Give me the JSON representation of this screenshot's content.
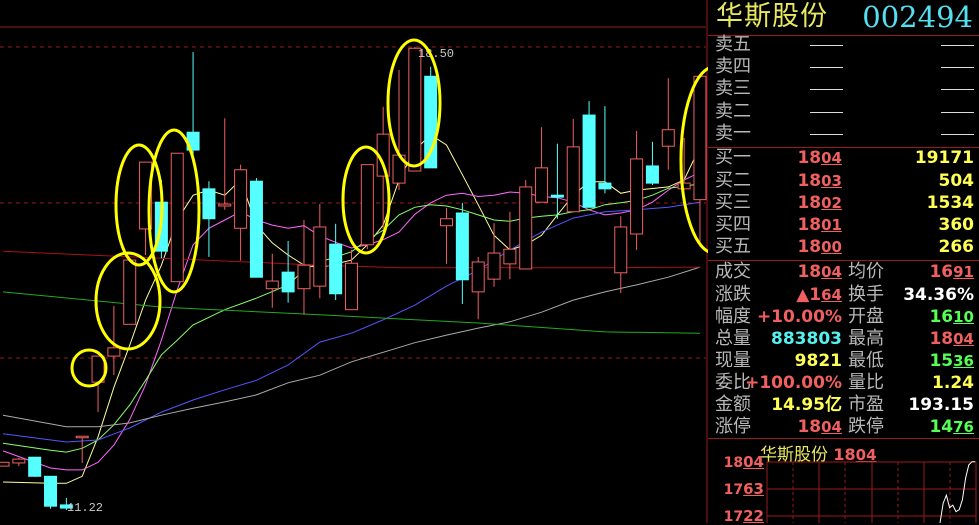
{
  "stock": {
    "name": "华斯股份",
    "code": "002494"
  },
  "order_book": {
    "sell": [
      {
        "label": "卖五"
      },
      {
        "label": "卖四"
      },
      {
        "label": "卖三"
      },
      {
        "label": "卖二"
      },
      {
        "label": "卖一"
      }
    ],
    "buy": [
      {
        "label": "买一",
        "price": {
          "i": "18",
          "d": "04"
        },
        "volume": "19171"
      },
      {
        "label": "买二",
        "price": {
          "i": "18",
          "d": "03"
        },
        "volume": "504"
      },
      {
        "label": "买三",
        "price": {
          "i": "18",
          "d": "02"
        },
        "volume": "1534"
      },
      {
        "label": "买四",
        "price": {
          "i": "18",
          "d": "01"
        },
        "volume": "360"
      },
      {
        "label": "买五",
        "price": {
          "i": "18",
          "d": "00"
        },
        "volume": "266"
      }
    ]
  },
  "stats": {
    "last": {
      "label": "成交",
      "i": "18",
      "d": "04"
    },
    "avg": {
      "label": "均价",
      "i": "16",
      "d": "91"
    },
    "change": {
      "label": "涨跌",
      "arrow": "▲",
      "i": "1",
      "d": "64"
    },
    "turnover": {
      "label": "换手",
      "value": "34.36%"
    },
    "pct": {
      "label": "幅度",
      "value": "+10.00%"
    },
    "open": {
      "label": "开盘",
      "i": "16",
      "d": "10"
    },
    "total_vol": {
      "label": "总量",
      "value": "883803"
    },
    "high": {
      "label": "最高",
      "i": "18",
      "d": "04"
    },
    "cur_vol": {
      "label": "现量",
      "value": "9821"
    },
    "low": {
      "label": "最低",
      "i": "15",
      "d": "36"
    },
    "order_ratio": {
      "label": "委比",
      "value": "+100.00%"
    },
    "vol_ratio": {
      "label": "量比",
      "value": "1.24"
    },
    "amount": {
      "label": "金额",
      "value": "14.95亿"
    },
    "pe": {
      "label": "市盈",
      "value": "193.15"
    },
    "limit_up": {
      "label": "涨停",
      "i": "18",
      "d": "04"
    },
    "limit_down": {
      "label": "跌停",
      "i": "14",
      "d": "76"
    }
  },
  "mini_chart": {
    "title": "华斯股份",
    "price": {
      "i": "18",
      "d": "04"
    },
    "axis": [
      {
        "i": "18",
        "d": "04"
      },
      {
        "i": "17",
        "d": "63"
      },
      {
        "i": "17",
        "d": "22"
      }
    ],
    "intraday_tail": [
      17.1,
      17.4,
      17.52,
      17.33,
      17.37,
      17.27,
      17.3,
      17.45,
      17.78,
      17.98,
      18.03,
      18.03
    ]
  },
  "colors": {
    "up": "#f06060",
    "down": "#55ffff",
    "ma5": "#ffff99",
    "ma10": "#ff66ff",
    "ma20": "#88ff66",
    "ma30": "#5555ff",
    "ma60": "#aaaaaa",
    "ma_long1": "#22aa22",
    "ma_long2": "#aa1111",
    "annotation": "#ffff00"
  },
  "chart_data": {
    "type": "candlestick",
    "high_label": "18.50",
    "low_label": "11.22",
    "ohlc": [
      [
        11.91,
        11.97,
        11.91,
        11.97
      ],
      [
        11.96,
        12.04,
        11.91,
        12.02
      ],
      [
        12.05,
        12.05,
        11.74,
        11.75
      ],
      [
        11.75,
        11.75,
        11.24,
        11.28
      ],
      [
        11.3,
        11.41,
        11.22,
        11.25
      ],
      [
        12.37,
        12.38,
        11.96,
        12.38
      ],
      [
        13.23,
        13.64,
        12.76,
        13.64
      ],
      [
        13.64,
        14.43,
        13.34,
        13.77
      ],
      [
        14.14,
        15.15,
        14.14,
        15.15
      ],
      [
        15.64,
        16.69,
        15.23,
        16.69
      ],
      [
        16.06,
        16.41,
        15.18,
        15.29
      ],
      [
        14.81,
        16.83,
        14.81,
        16.83
      ],
      [
        17.16,
        18.42,
        16.68,
        16.88
      ],
      [
        16.27,
        16.39,
        15.2,
        15.8
      ],
      [
        16.0,
        17.38,
        15.94,
        16.03
      ],
      [
        15.65,
        16.65,
        15.14,
        16.57
      ],
      [
        16.39,
        16.44,
        14.88,
        14.88
      ],
      [
        14.7,
        15.25,
        14.4,
        14.82
      ],
      [
        14.96,
        15.45,
        14.48,
        14.65
      ],
      [
        14.7,
        15.78,
        14.29,
        15.07
      ],
      [
        14.74,
        16.03,
        14.55,
        15.67
      ],
      [
        15.4,
        15.72,
        14.52,
        14.62
      ],
      [
        14.37,
        15.31,
        14.37,
        15.1
      ],
      [
        15.39,
        16.65,
        15.32,
        16.65
      ],
      [
        16.47,
        17.56,
        15.64,
        17.13
      ],
      [
        16.36,
        18.14,
        16.25,
        16.8
      ],
      [
        16.55,
        18.5,
        16.55,
        18.48
      ],
      [
        18.04,
        18.19,
        16.6,
        16.6
      ],
      [
        15.69,
        15.97,
        15.09,
        15.8
      ],
      [
        15.89,
        16.05,
        14.46,
        14.84
      ],
      [
        14.65,
        15.2,
        14.22,
        15.12
      ],
      [
        14.85,
        15.73,
        14.73,
        15.26
      ],
      [
        15.09,
        15.91,
        14.85,
        15.32
      ],
      [
        15.01,
        16.41,
        15.01,
        16.3
      ],
      [
        16.06,
        17.24,
        16.06,
        16.6
      ],
      [
        16.17,
        16.98,
        15.8,
        16.14
      ],
      [
        15.91,
        17.37,
        15.91,
        16.93
      ],
      [
        17.43,
        17.65,
        15.98,
        15.98
      ],
      [
        16.36,
        17.57,
        16.2,
        16.27
      ],
      [
        14.95,
        15.84,
        14.63,
        15.67
      ],
      [
        15.56,
        17.18,
        15.31,
        16.74
      ],
      [
        16.63,
        17.01,
        16.33,
        16.36
      ],
      [
        16.94,
        18.01,
        16.57,
        17.2
      ],
      [
        16.27,
        17.07,
        16.25,
        16.36
      ],
      [
        16.1,
        18.04,
        15.36,
        18.04
      ]
    ],
    "moving_averages": [
      {
        "color": "ma5",
        "points": [
          [
            0,
            11.66
          ],
          [
            3,
            11.64
          ],
          [
            4,
            11.64
          ],
          [
            5,
            11.75
          ],
          [
            6,
            12.37
          ],
          [
            7,
            13.15
          ],
          [
            8,
            13.81
          ],
          [
            9,
            14.52
          ],
          [
            10,
            15.07
          ],
          [
            11,
            15.78
          ],
          [
            12,
            16.17
          ],
          [
            13,
            16.25
          ],
          [
            14,
            16.17
          ],
          [
            15,
            16.41
          ],
          [
            16,
            15.7
          ],
          [
            17,
            15.42
          ],
          [
            18,
            15.23
          ],
          [
            19,
            15.07
          ],
          [
            20,
            15.03
          ],
          [
            22,
            15.15
          ],
          [
            23,
            15.39
          ],
          [
            24,
            15.7
          ],
          [
            25,
            16.41
          ],
          [
            26,
            16.88
          ],
          [
            27,
            17.12
          ],
          [
            28,
            16.96
          ],
          [
            29,
            16.49
          ],
          [
            30,
            16.02
          ],
          [
            31,
            15.54
          ],
          [
            32,
            15.31
          ],
          [
            33,
            15.39
          ],
          [
            34,
            15.54
          ],
          [
            35,
            15.86
          ],
          [
            36,
            16.17
          ],
          [
            37,
            16.38
          ],
          [
            38,
            16.38
          ],
          [
            39,
            16.2
          ],
          [
            40,
            16.25
          ],
          [
            42,
            16.3
          ],
          [
            43,
            16.41
          ],
          [
            44,
            16.93
          ]
        ]
      },
      {
        "color": "ma10",
        "points": [
          [
            0,
            12.15
          ],
          [
            3,
            11.88
          ],
          [
            4,
            11.85
          ],
          [
            5,
            11.85
          ],
          [
            6,
            11.97
          ],
          [
            7,
            12.24
          ],
          [
            8,
            12.64
          ],
          [
            9,
            13.19
          ],
          [
            10,
            13.89
          ],
          [
            11,
            14.68
          ],
          [
            12,
            15.39
          ],
          [
            13,
            15.65
          ],
          [
            14,
            15.78
          ],
          [
            15,
            15.91
          ],
          [
            16,
            15.78
          ],
          [
            17,
            15.7
          ],
          [
            18,
            15.65
          ],
          [
            19,
            15.69
          ],
          [
            20,
            15.53
          ],
          [
            21,
            15.43
          ],
          [
            22,
            15.34
          ],
          [
            23,
            15.39
          ],
          [
            24,
            15.47
          ],
          [
            25,
            15.59
          ],
          [
            26,
            15.87
          ],
          [
            27,
            16.05
          ],
          [
            28,
            16.17
          ],
          [
            29,
            16.2
          ],
          [
            30,
            16.15
          ],
          [
            31,
            16.17
          ],
          [
            32,
            16.22
          ],
          [
            33,
            16.2
          ],
          [
            34,
            16.15
          ],
          [
            35,
            16.13
          ],
          [
            36,
            16.06
          ],
          [
            37,
            15.94
          ],
          [
            38,
            15.86
          ],
          [
            39,
            15.89
          ],
          [
            40,
            15.94
          ],
          [
            41,
            16.06
          ],
          [
            42,
            16.25
          ],
          [
            43,
            16.41
          ],
          [
            44,
            16.53
          ]
        ]
      },
      {
        "color": "ma20",
        "points": [
          [
            0,
            12.27
          ],
          [
            3,
            12.16
          ],
          [
            4,
            12.13
          ],
          [
            5,
            12.19
          ],
          [
            6,
            12.32
          ],
          [
            7,
            12.56
          ],
          [
            8,
            12.87
          ],
          [
            9,
            13.26
          ],
          [
            10,
            13.66
          ],
          [
            11,
            13.89
          ],
          [
            12,
            14.13
          ],
          [
            14,
            14.37
          ],
          [
            16,
            14.55
          ],
          [
            18,
            14.76
          ],
          [
            19,
            14.99
          ],
          [
            20,
            15.12
          ],
          [
            22,
            15.28
          ],
          [
            23,
            15.47
          ],
          [
            24,
            15.62
          ],
          [
            25,
            15.86
          ],
          [
            26,
            15.98
          ],
          [
            27,
            16.02
          ],
          [
            28,
            16.0
          ],
          [
            29,
            15.94
          ],
          [
            30,
            15.86
          ],
          [
            31,
            15.78
          ],
          [
            32,
            15.76
          ],
          [
            33,
            15.81
          ],
          [
            34,
            15.84
          ],
          [
            35,
            15.86
          ],
          [
            36,
            15.91
          ],
          [
            37,
            15.94
          ],
          [
            38,
            16.02
          ],
          [
            39,
            16.05
          ],
          [
            40,
            16.09
          ],
          [
            41,
            16.17
          ],
          [
            42,
            16.28
          ],
          [
            43,
            16.31
          ],
          [
            44,
            16.35
          ]
        ]
      },
      {
        "color": "ma30",
        "points": [
          [
            0,
            12.42
          ],
          [
            4,
            12.29
          ],
          [
            6,
            12.32
          ],
          [
            8,
            12.51
          ],
          [
            10,
            12.76
          ],
          [
            12,
            12.95
          ],
          [
            14,
            13.11
          ],
          [
            16,
            13.26
          ],
          [
            18,
            13.5
          ],
          [
            20,
            13.86
          ],
          [
            22,
            14.0
          ],
          [
            24,
            14.21
          ],
          [
            26,
            14.44
          ],
          [
            28,
            14.74
          ],
          [
            30,
            14.99
          ],
          [
            32,
            15.31
          ],
          [
            34,
            15.59
          ],
          [
            36,
            15.81
          ],
          [
            38,
            15.91
          ],
          [
            40,
            15.94
          ],
          [
            42,
            15.98
          ],
          [
            44,
            16.06
          ]
        ]
      },
      {
        "color": "ma60",
        "points": [
          [
            0,
            12.71
          ],
          [
            4,
            12.53
          ],
          [
            6,
            12.53
          ],
          [
            8,
            12.59
          ],
          [
            10,
            12.71
          ],
          [
            12,
            12.82
          ],
          [
            14,
            12.92
          ],
          [
            16,
            13.03
          ],
          [
            18,
            13.22
          ],
          [
            20,
            13.34
          ],
          [
            22,
            13.55
          ],
          [
            24,
            13.7
          ],
          [
            26,
            13.85
          ],
          [
            28,
            13.97
          ],
          [
            30,
            14.08
          ],
          [
            32,
            14.18
          ],
          [
            34,
            14.33
          ],
          [
            36,
            14.52
          ],
          [
            38,
            14.65
          ],
          [
            40,
            14.76
          ],
          [
            42,
            14.88
          ],
          [
            44,
            15.04
          ]
        ]
      },
      {
        "color": "ma_long1",
        "points": [
          [
            0,
            14.65
          ],
          [
            10,
            14.41
          ],
          [
            20,
            14.29
          ],
          [
            30,
            14.16
          ],
          [
            38,
            14.02
          ],
          [
            44,
            14.0
          ]
        ]
      },
      {
        "color": "ma_long2",
        "points": [
          [
            0,
            15.29
          ],
          [
            10,
            15.18
          ],
          [
            20,
            15.07
          ],
          [
            25,
            15.03
          ],
          [
            30,
            15.03
          ],
          [
            38,
            15.03
          ],
          [
            44,
            15.04
          ]
        ]
      }
    ]
  }
}
